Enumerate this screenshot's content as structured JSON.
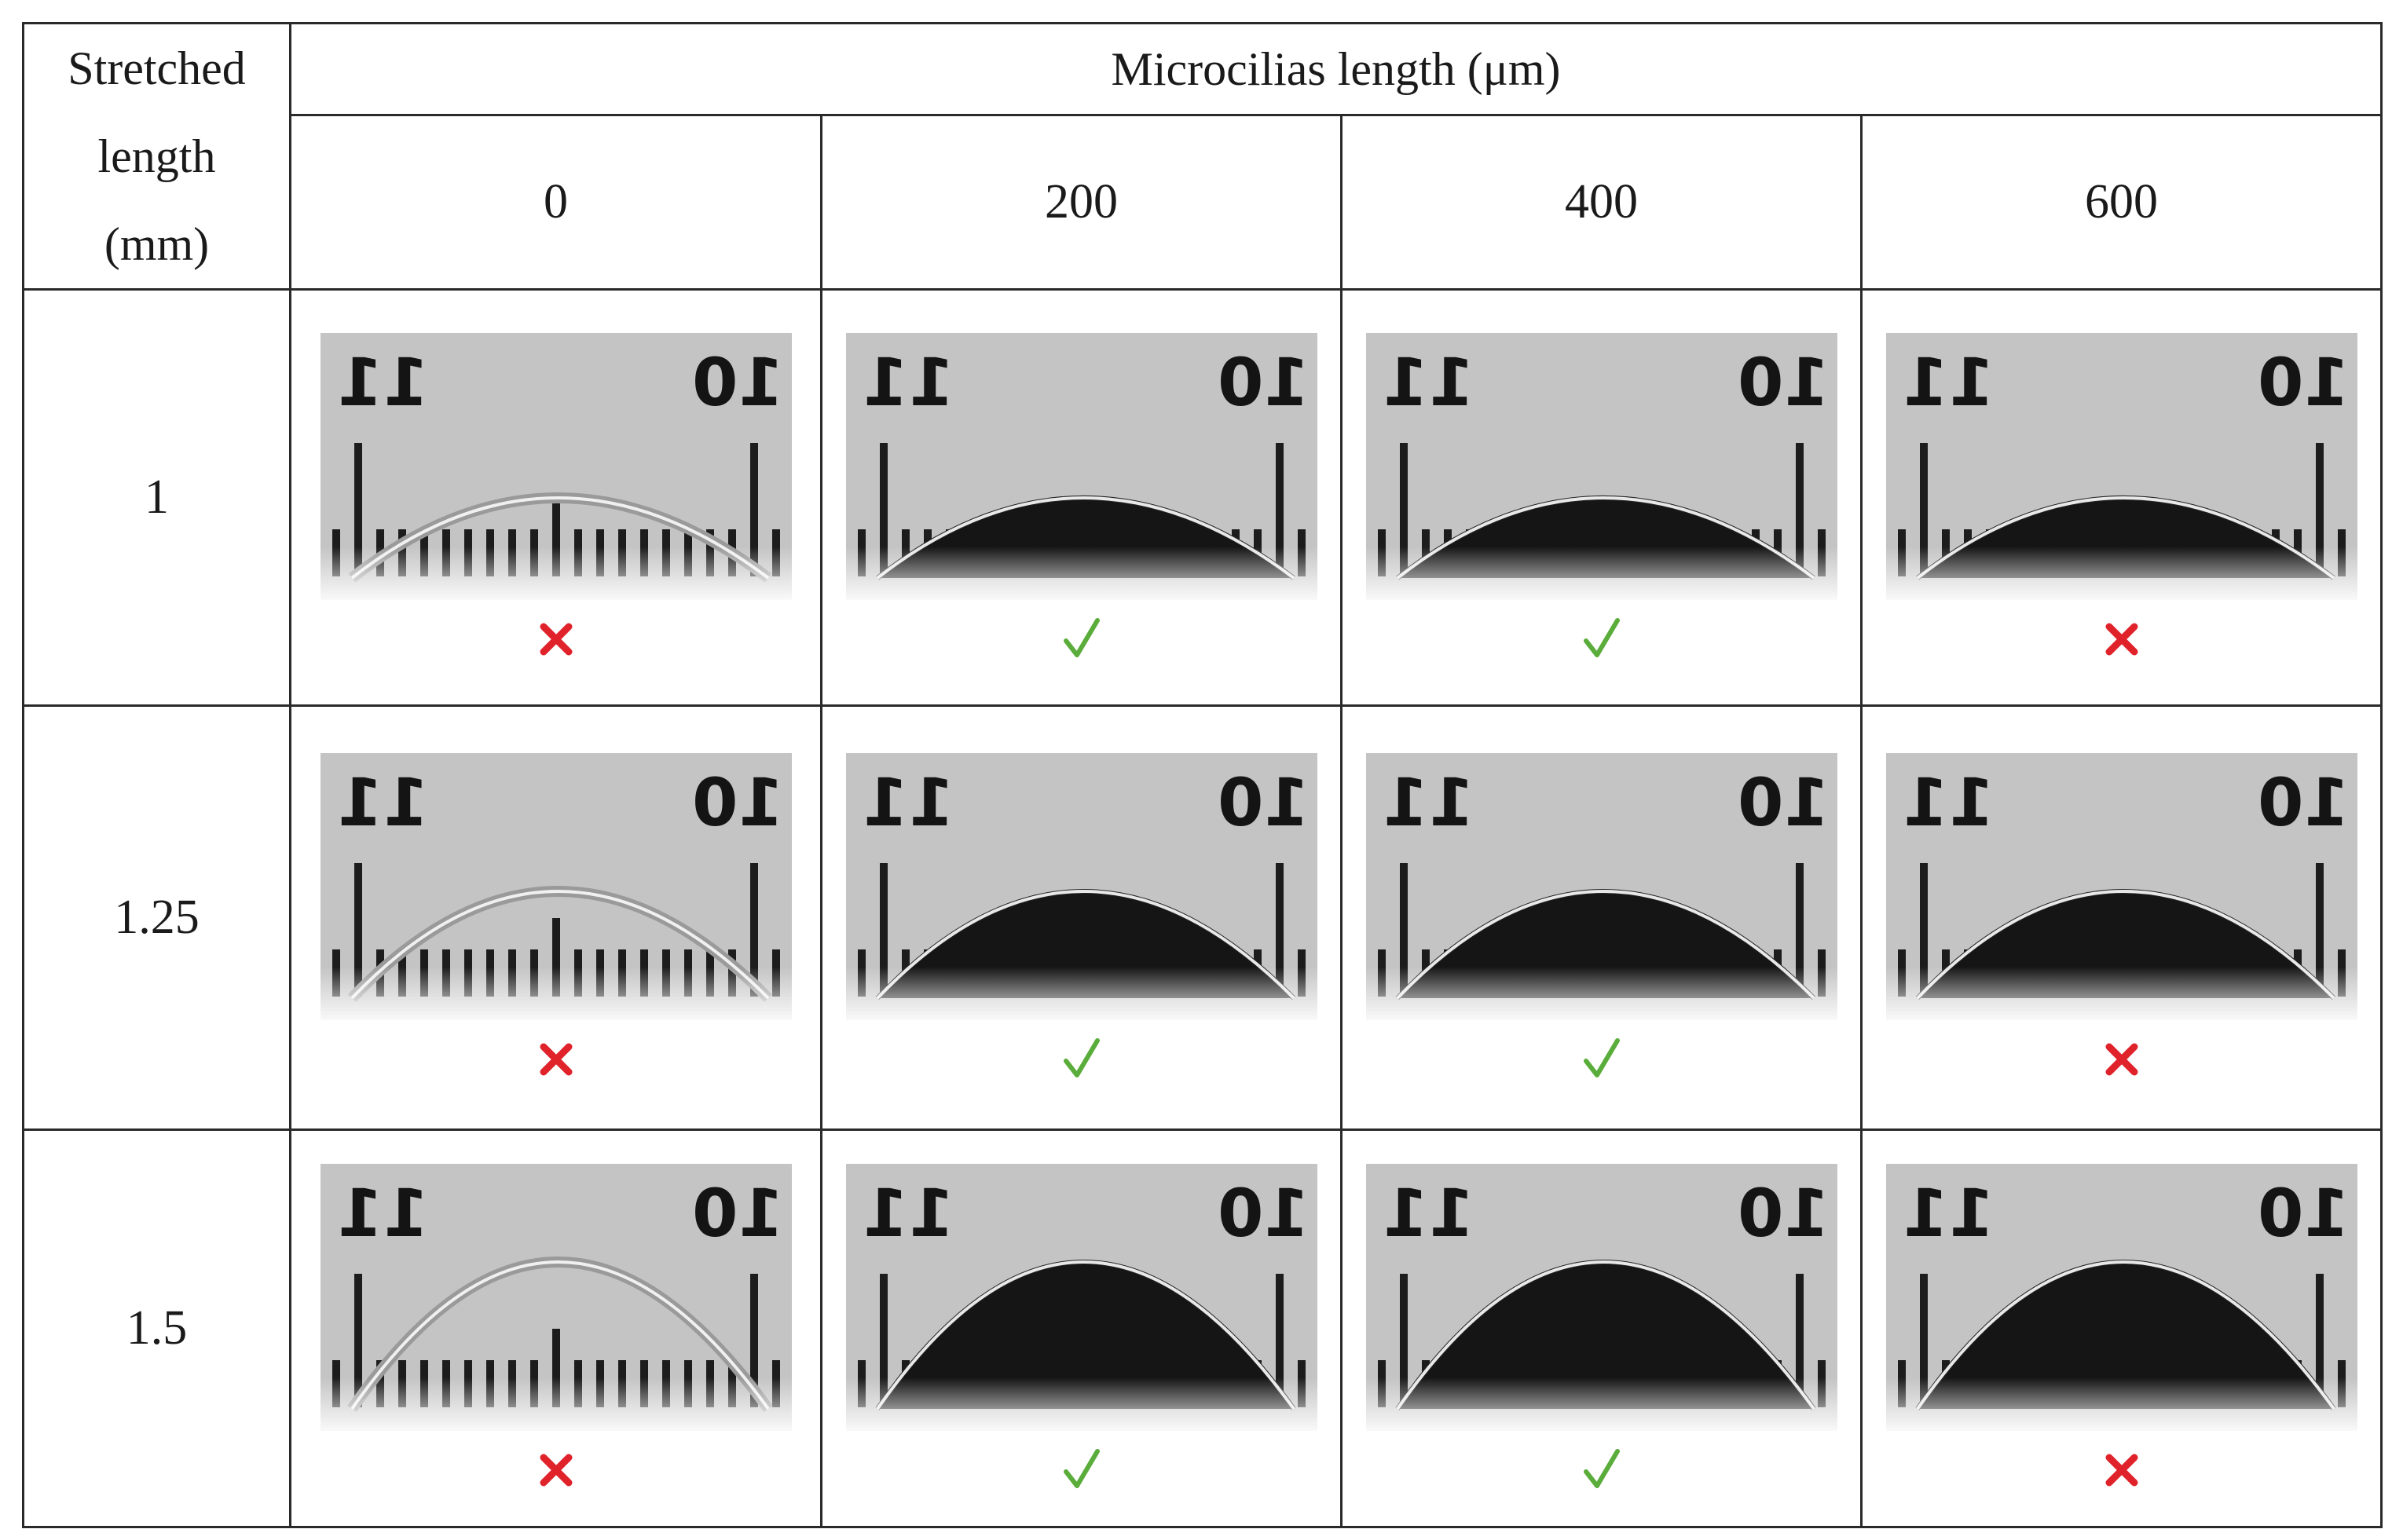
{
  "header": {
    "row_label": [
      "Stretched",
      "length",
      "(mm)"
    ],
    "group_label": "Microcilias length (μm)",
    "columns": [
      "0",
      "200",
      "400",
      "600"
    ]
  },
  "rows": [
    {
      "label": "1",
      "results": [
        "cross",
        "check",
        "check",
        "cross"
      ],
      "arc_height": 0.3
    },
    {
      "label": "1.25",
      "results": [
        "cross",
        "check",
        "check",
        "cross"
      ],
      "arc_height": 0.4
    },
    {
      "label": "1.5",
      "results": [
        "cross",
        "check",
        "check",
        "cross"
      ],
      "arc_height": 0.55
    }
  ],
  "scale_labels": {
    "left": "11",
    "right": "10"
  },
  "colors": {
    "cross": "#e0222a",
    "check": "#5aad3a",
    "border": "#2a2a2a"
  }
}
